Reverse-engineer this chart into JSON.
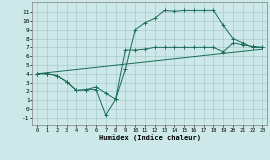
{
  "xlabel": "Humidex (Indice chaleur)",
  "bg_color": "#cce8e8",
  "grid_color": "#aacccc",
  "line_color": "#1a6b5a",
  "xlim": [
    -0.5,
    23.5
  ],
  "ylim": [
    -1.8,
    12.2
  ],
  "xticks": [
    0,
    1,
    2,
    3,
    4,
    5,
    6,
    7,
    8,
    9,
    10,
    11,
    12,
    13,
    14,
    15,
    16,
    17,
    18,
    19,
    20,
    21,
    22,
    23
  ],
  "yticks": [
    -1,
    0,
    1,
    2,
    3,
    4,
    5,
    6,
    7,
    8,
    9,
    10,
    11
  ],
  "line1_x": [
    0,
    1,
    2,
    3,
    4,
    5,
    6,
    7,
    8,
    9,
    10,
    11,
    12,
    13,
    14,
    15,
    16,
    17,
    18,
    19,
    20,
    21,
    22,
    23
  ],
  "line1_y": [
    4.0,
    4.0,
    3.8,
    3.1,
    2.1,
    2.2,
    2.2,
    -0.7,
    1.1,
    4.5,
    9.0,
    9.8,
    10.3,
    11.2,
    11.1,
    11.2,
    11.2,
    11.2,
    11.2,
    9.5,
    8.0,
    7.5,
    7.0,
    7.0
  ],
  "line2_x": [
    0,
    1,
    2,
    3,
    4,
    5,
    6,
    7,
    8,
    9,
    10,
    11,
    12,
    13,
    14,
    15,
    16,
    17,
    18,
    19,
    20,
    21,
    22,
    23
  ],
  "line2_y": [
    4.0,
    4.0,
    3.8,
    3.1,
    2.1,
    2.2,
    2.5,
    1.8,
    1.1,
    6.7,
    6.7,
    6.8,
    7.0,
    7.0,
    7.0,
    7.0,
    7.0,
    7.0,
    7.0,
    6.5,
    7.5,
    7.3,
    7.1,
    7.0
  ],
  "line3_x": [
    0,
    23
  ],
  "line3_y": [
    4.0,
    6.8
  ]
}
